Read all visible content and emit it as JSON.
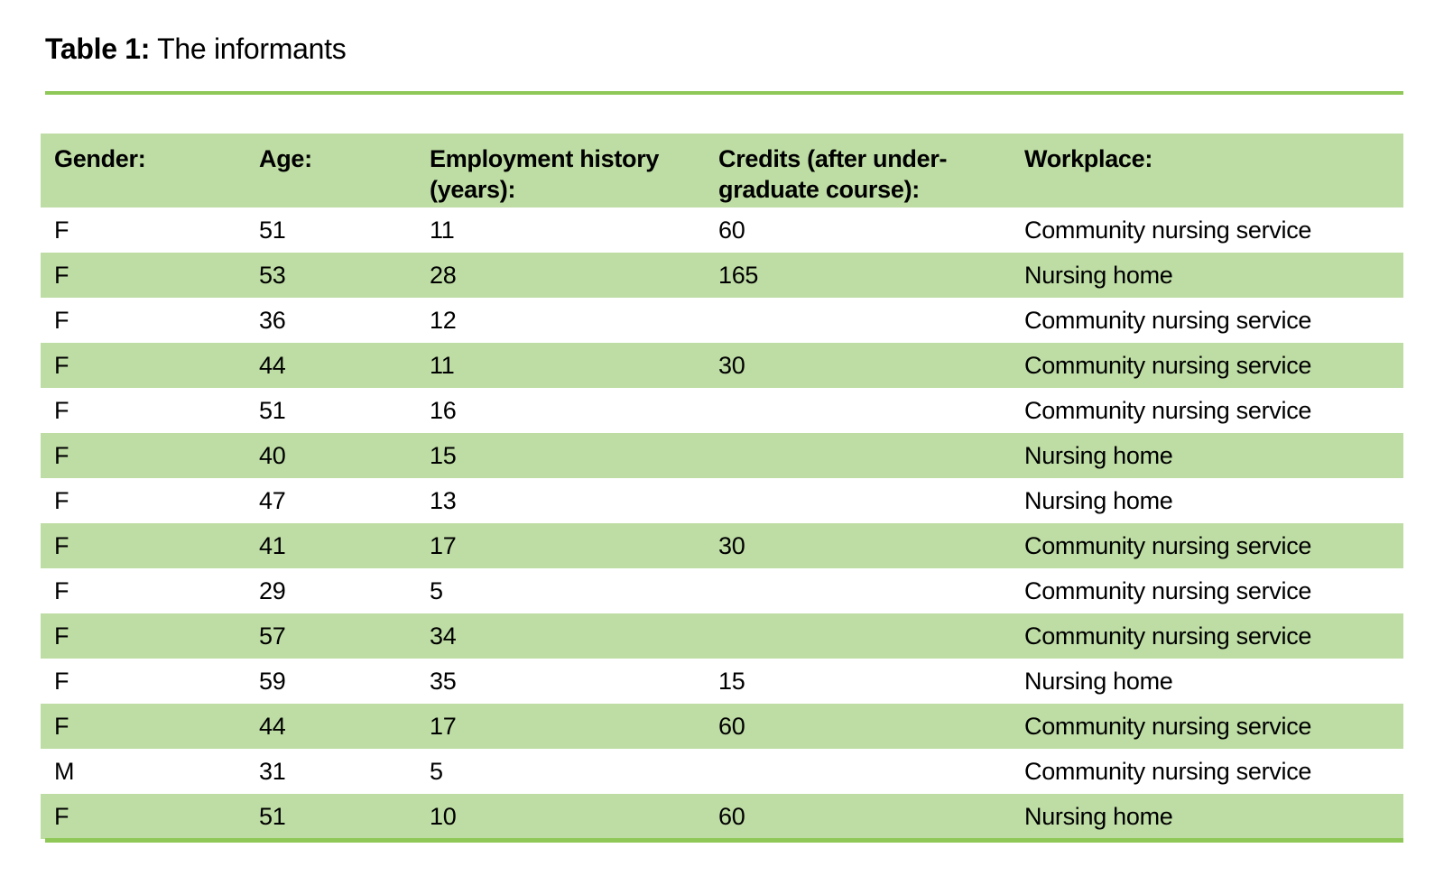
{
  "caption": {
    "label": "Table 1:",
    "text": " The informants"
  },
  "table": {
    "headers": [
      "Gender:",
      "Age:",
      "Employment history\n(years):",
      "Credits (after under-\ngraduate course):",
      "Workplace:"
    ],
    "column_keys": [
      "gender",
      "age",
      "employment-history-years",
      "credits-after-undergraduate",
      "workplace"
    ],
    "rows": [
      [
        "F",
        "51",
        "11",
        "60",
        "Community nursing service"
      ],
      [
        "F",
        "53",
        "28",
        "165",
        "Nursing home"
      ],
      [
        "F",
        "36",
        "12",
        "",
        "Community nursing service"
      ],
      [
        "F",
        "44",
        "11",
        "30",
        "Community nursing service"
      ],
      [
        "F",
        "51",
        "16",
        "",
        "Community nursing service"
      ],
      [
        "F",
        "40",
        "15",
        "",
        "Nursing home"
      ],
      [
        "F",
        "47",
        "13",
        "",
        "Nursing home"
      ],
      [
        "F",
        "41",
        "17",
        "30",
        "Community nursing service"
      ],
      [
        "F",
        "29",
        "5",
        "",
        "Community nursing service"
      ],
      [
        "F",
        "57",
        "34",
        "",
        "Community nursing service"
      ],
      [
        "F",
        "59",
        "35",
        "15",
        "Nursing home"
      ],
      [
        "F",
        "44",
        "17",
        "60",
        "Community nursing service"
      ],
      [
        "M",
        "31",
        "5",
        "",
        "Community nursing service"
      ],
      [
        "F",
        "51",
        "10",
        "60",
        "Nursing home"
      ]
    ]
  },
  "colors": {
    "row_band_green": "#bedda4",
    "rule_green": "#8fc857",
    "text": "#000000",
    "background": "#ffffff"
  }
}
